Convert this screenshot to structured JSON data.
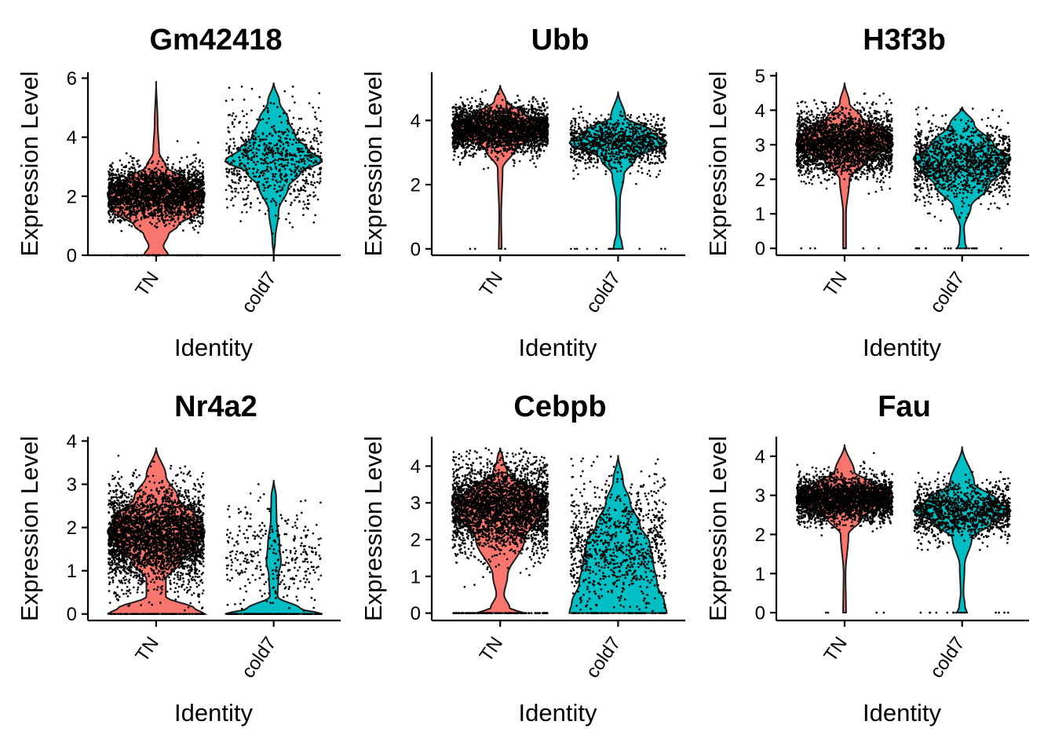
{
  "chart_data": [
    {
      "type": "violin",
      "title": "Gm42418",
      "xlabel": "Identity",
      "ylabel": "Expression Level",
      "categories": [
        "TN",
        "cold7"
      ],
      "ylim": [
        0,
        6.2
      ],
      "yticks": [
        0,
        2,
        4,
        6
      ],
      "colors": [
        "#F8766D",
        "#00BFC4"
      ],
      "groups": [
        {
          "name": "TN",
          "max": 5.9,
          "profile": [
            [
              0,
              0.25
            ],
            [
              0.3,
              0.15
            ],
            [
              0.7,
              0.25
            ],
            [
              1.0,
              0.45
            ],
            [
              1.5,
              0.9
            ],
            [
              2.1,
              1.0
            ],
            [
              2.6,
              0.6
            ],
            [
              3.0,
              0.2
            ],
            [
              3.5,
              0.06
            ],
            [
              4.5,
              0.03
            ],
            [
              5.9,
              0
            ]
          ],
          "points": {
            "n": 2600,
            "center": 2.1,
            "sd": 0.45,
            "zeros": 40
          }
        },
        {
          "name": "cold7",
          "max": 5.85,
          "profile": [
            [
              0,
              0
            ],
            [
              0.5,
              0.03
            ],
            [
              1.5,
              0.1
            ],
            [
              2.3,
              0.3
            ],
            [
              2.8,
              0.55
            ],
            [
              3.2,
              1.0
            ],
            [
              3.6,
              0.7
            ],
            [
              4.0,
              0.45
            ],
            [
              4.6,
              0.3
            ],
            [
              5.2,
              0.12
            ],
            [
              5.85,
              0
            ]
          ],
          "points": {
            "n": 700,
            "center": 3.2,
            "sd": 0.85,
            "zeros": 3
          }
        }
      ]
    },
    {
      "type": "violin",
      "title": "Ubb",
      "xlabel": "Identity",
      "ylabel": "Expression Level",
      "categories": [
        "TN",
        "cold7"
      ],
      "ylim": [
        -0.2,
        5.5
      ],
      "yticks": [
        0,
        2,
        4
      ],
      "colors": [
        "#F8766D",
        "#00BFC4"
      ],
      "groups": [
        {
          "name": "TN",
          "max": 5.1,
          "profile": [
            [
              0,
              0.03
            ],
            [
              1.0,
              0.02
            ],
            [
              2.5,
              0.05
            ],
            [
              3.1,
              0.3
            ],
            [
              3.6,
              0.9
            ],
            [
              3.85,
              1.0
            ],
            [
              4.2,
              0.5
            ],
            [
              4.6,
              0.12
            ],
            [
              5.1,
              0
            ]
          ],
          "points": {
            "n": 2800,
            "center": 3.75,
            "sd": 0.35,
            "zeros": 3
          }
        },
        {
          "name": "cold7",
          "max": 4.9,
          "profile": [
            [
              0,
              0.1
            ],
            [
              0.15,
              0.08
            ],
            [
              0.5,
              0.03
            ],
            [
              1.5,
              0.04
            ],
            [
              2.3,
              0.12
            ],
            [
              2.8,
              0.35
            ],
            [
              3.3,
              1.0
            ],
            [
              3.7,
              0.65
            ],
            [
              4.1,
              0.15
            ],
            [
              4.9,
              0
            ]
          ],
          "points": {
            "n": 1100,
            "center": 3.3,
            "sd": 0.4,
            "zeros": 14
          }
        }
      ]
    },
    {
      "type": "violin",
      "title": "H3f3b",
      "xlabel": "Identity",
      "ylabel": "Expression Level",
      "categories": [
        "TN",
        "cold7"
      ],
      "ylim": [
        -0.2,
        5.1
      ],
      "yticks": [
        0,
        1,
        2,
        3,
        4,
        5
      ],
      "colors": [
        "#F8766D",
        "#00BFC4"
      ],
      "groups": [
        {
          "name": "TN",
          "max": 4.8,
          "profile": [
            [
              0,
              0.03
            ],
            [
              1.0,
              0.03
            ],
            [
              2.0,
              0.1
            ],
            [
              2.5,
              0.4
            ],
            [
              3.0,
              1.0
            ],
            [
              3.4,
              0.85
            ],
            [
              3.8,
              0.35
            ],
            [
              4.2,
              0.1
            ],
            [
              4.8,
              0
            ]
          ],
          "points": {
            "n": 2800,
            "center": 3.05,
            "sd": 0.45,
            "zeros": 6
          }
        },
        {
          "name": "cold7",
          "max": 4.1,
          "profile": [
            [
              0,
              0.1
            ],
            [
              0.15,
              0.06
            ],
            [
              0.6,
              0.04
            ],
            [
              1.2,
              0.18
            ],
            [
              1.8,
              0.55
            ],
            [
              2.3,
              0.85
            ],
            [
              2.6,
              1.0
            ],
            [
              3.0,
              0.65
            ],
            [
              3.6,
              0.25
            ],
            [
              4.1,
              0
            ]
          ],
          "points": {
            "n": 1400,
            "center": 2.5,
            "sd": 0.55,
            "zeros": 18
          }
        }
      ]
    },
    {
      "type": "violin",
      "title": "Nr4a2",
      "xlabel": "Identity",
      "ylabel": "Expression Level",
      "categories": [
        "TN",
        "cold7"
      ],
      "ylim": [
        -0.15,
        4.1
      ],
      "yticks": [
        0,
        1,
        2,
        3,
        4
      ],
      "colors": [
        "#F8766D",
        "#00BFC4"
      ],
      "groups": [
        {
          "name": "TN",
          "max": 3.85,
          "profile": [
            [
              0,
              1.0
            ],
            [
              0.12,
              0.8
            ],
            [
              0.4,
              0.2
            ],
            [
              0.8,
              0.2
            ],
            [
              1.2,
              0.5
            ],
            [
              1.6,
              0.8
            ],
            [
              1.9,
              1.0
            ],
            [
              2.2,
              0.85
            ],
            [
              2.7,
              0.45
            ],
            [
              3.2,
              0.2
            ],
            [
              3.85,
              0
            ]
          ],
          "points": {
            "n": 3400,
            "center": 1.8,
            "sd": 0.55,
            "zeros": 90
          }
        },
        {
          "name": "cold7",
          "max": 3.1,
          "profile": [
            [
              0,
              1.0
            ],
            [
              0.12,
              0.55
            ],
            [
              0.4,
              0.08
            ],
            [
              0.9,
              0.1
            ],
            [
              1.2,
              0.15
            ],
            [
              1.6,
              0.12
            ],
            [
              2.2,
              0.06
            ],
            [
              2.7,
              0.05
            ],
            [
              3.1,
              0
            ]
          ],
          "points": {
            "n": 320,
            "center": 1.3,
            "sd": 0.55,
            "zeros": 160
          }
        }
      ]
    },
    {
      "type": "violin",
      "title": "Cebpb",
      "xlabel": "Identity",
      "ylabel": "Expression Level",
      "categories": [
        "TN",
        "cold7"
      ],
      "ylim": [
        -0.2,
        4.8
      ],
      "yticks": [
        0,
        1,
        2,
        3,
        4
      ],
      "colors": [
        "#F8766D",
        "#00BFC4"
      ],
      "groups": [
        {
          "name": "TN",
          "max": 4.5,
          "profile": [
            [
              0,
              0.5
            ],
            [
              0.12,
              0.2
            ],
            [
              0.5,
              0.08
            ],
            [
              1.0,
              0.15
            ],
            [
              2.0,
              0.5
            ],
            [
              2.7,
              0.85
            ],
            [
              3.0,
              1.0
            ],
            [
              3.4,
              0.6
            ],
            [
              3.8,
              0.15
            ],
            [
              4.2,
              0.06
            ],
            [
              4.5,
              0
            ]
          ],
          "points": {
            "n": 3000,
            "center": 2.9,
            "sd": 0.6,
            "zeros": 110
          }
        },
        {
          "name": "cold7",
          "max": 4.3,
          "profile": [
            [
              0,
              1.0
            ],
            [
              0.3,
              0.95
            ],
            [
              0.8,
              0.8
            ],
            [
              1.4,
              0.72
            ],
            [
              1.9,
              0.65
            ],
            [
              2.4,
              0.45
            ],
            [
              3.0,
              0.25
            ],
            [
              3.6,
              0.1
            ],
            [
              4.3,
              0
            ]
          ],
          "points": {
            "n": 900,
            "center": 1.9,
            "sd": 0.85,
            "zeros": 60
          }
        }
      ]
    },
    {
      "type": "violin",
      "title": "Fau",
      "xlabel": "Identity",
      "ylabel": "Expression Level",
      "categories": [
        "TN",
        "cold7"
      ],
      "ylim": [
        -0.2,
        4.5
      ],
      "yticks": [
        0,
        1,
        2,
        3,
        4
      ],
      "colors": [
        "#F8766D",
        "#00BFC4"
      ],
      "groups": [
        {
          "name": "TN",
          "max": 4.3,
          "profile": [
            [
              0,
              0.03
            ],
            [
              1.0,
              0.02
            ],
            [
              2.0,
              0.08
            ],
            [
              2.4,
              0.35
            ],
            [
              2.8,
              0.85
            ],
            [
              2.95,
              1.0
            ],
            [
              3.3,
              0.6
            ],
            [
              3.6,
              0.2
            ],
            [
              4.3,
              0
            ]
          ],
          "points": {
            "n": 2800,
            "center": 2.9,
            "sd": 0.28,
            "zeros": 4
          }
        },
        {
          "name": "cold7",
          "max": 4.25,
          "profile": [
            [
              0,
              0.1
            ],
            [
              0.15,
              0.06
            ],
            [
              0.5,
              0.03
            ],
            [
              1.2,
              0.05
            ],
            [
              1.9,
              0.2
            ],
            [
              2.3,
              0.6
            ],
            [
              2.6,
              1.0
            ],
            [
              2.9,
              0.7
            ],
            [
              3.3,
              0.25
            ],
            [
              4.25,
              0
            ]
          ],
          "points": {
            "n": 1300,
            "center": 2.6,
            "sd": 0.35,
            "zeros": 14
          }
        }
      ]
    }
  ]
}
